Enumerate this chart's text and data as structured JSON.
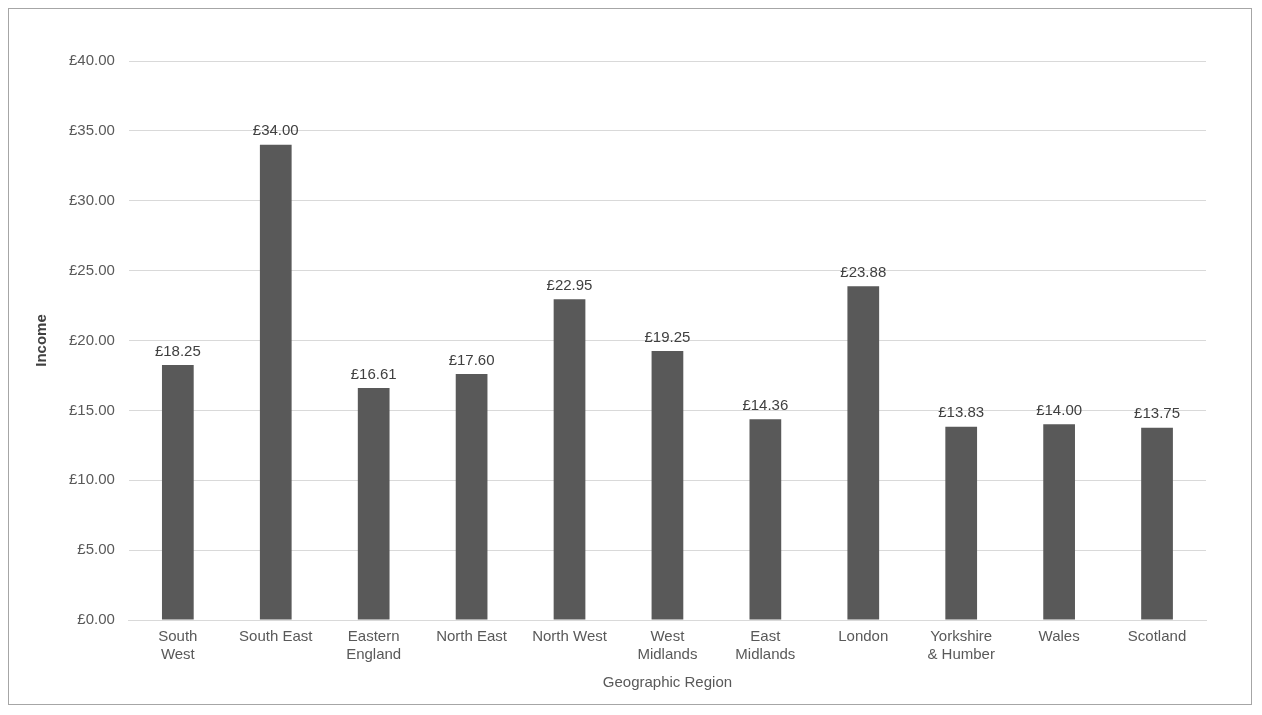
{
  "chart_data": {
    "type": "bar",
    "xlabel": "Geographic Region",
    "ylabel": "Income",
    "categories": [
      "South West",
      "South East",
      "Eastern England",
      "North East",
      "North West",
      "West Midlands",
      "East Midlands",
      "London",
      "Yorkshire & Humber",
      "Wales",
      "Scotland"
    ],
    "values": [
      18.25,
      34.0,
      16.61,
      17.6,
      22.95,
      19.25,
      14.36,
      23.88,
      13.83,
      14.0,
      13.75
    ],
    "value_labels": [
      "£18.25",
      "£34.00",
      "£16.61",
      "£17.60",
      "£22.95",
      "£19.25",
      "£14.36",
      "£23.88",
      "£13.83",
      "£14.00",
      "£13.75"
    ],
    "color": "#595959",
    "ylim": [
      0,
      40
    ],
    "yticks": [
      {
        "value": 0,
        "label": "£0.00"
      },
      {
        "value": 5,
        "label": "£5.00"
      },
      {
        "value": 10,
        "label": "£10.00"
      },
      {
        "value": 15,
        "label": "£15.00"
      },
      {
        "value": 20,
        "label": "£20.00"
      },
      {
        "value": 25,
        "label": "£25.00"
      },
      {
        "value": 30,
        "label": "£30.00"
      },
      {
        "value": 35,
        "label": "£35.00"
      },
      {
        "value": 40,
        "label": "£40.00"
      }
    ],
    "grid": "y",
    "legend": false
  }
}
